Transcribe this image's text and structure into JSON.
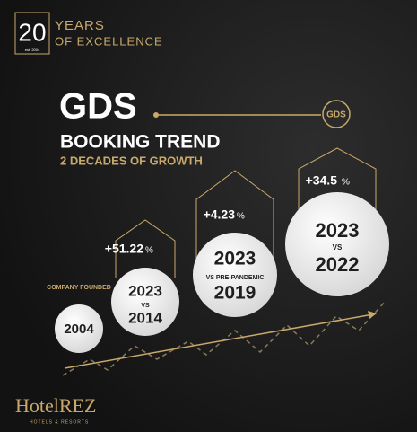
{
  "badge": {
    "number": "20",
    "line1": "YEARS",
    "line2": "OF EXCELLENCE",
    "established": "est. 2004"
  },
  "header": {
    "title": "GDS",
    "subtitle": "BOOKING TREND",
    "tagline": "2 DECADES OF GROWTH",
    "icon": "GDS"
  },
  "milestones": [
    {
      "caption": "COMPANY FOUNDED",
      "year": "2004"
    },
    {
      "growth": "+51.22",
      "unit": "%",
      "line1": "2023",
      "line2": "VS",
      "line3": "2014"
    },
    {
      "growth": "+4.23",
      "unit": "%",
      "line1": "2023",
      "line2": "VS PRE-PANDEMIC",
      "line3": "2019"
    },
    {
      "growth": "+34.5",
      "unit": "%",
      "line1": "2023",
      "line2": "VS",
      "line3": "2022"
    }
  ],
  "footer": {
    "brand": "HotelREZ",
    "tagline": "HOTELS & RESORTS"
  }
}
